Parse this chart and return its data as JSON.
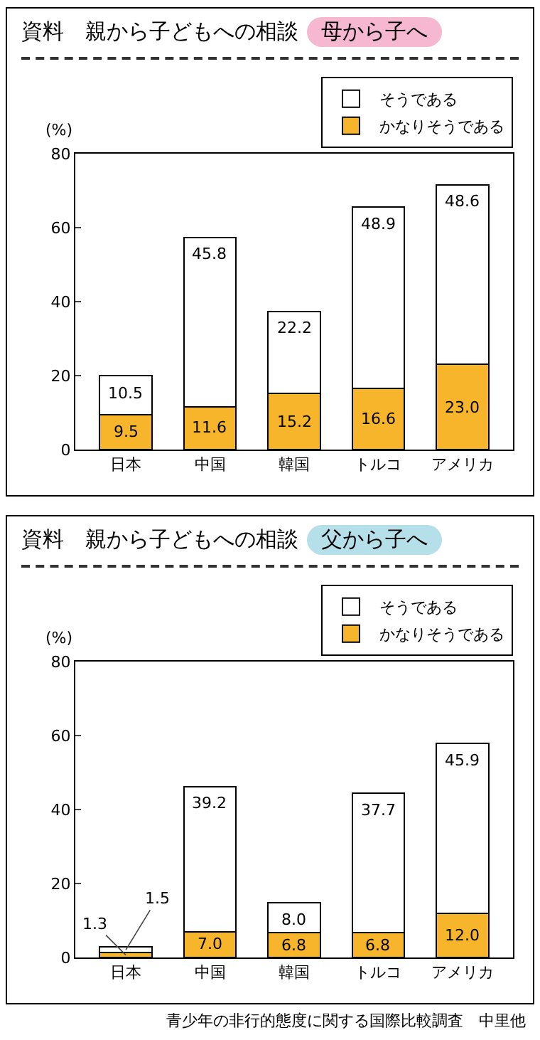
{
  "chart_data": [
    {
      "type": "bar",
      "title": "資料　親から子どもへの相談",
      "subtitle": "母から子へ",
      "ylabel": "(%)",
      "categories": [
        "日本",
        "中国",
        "韓国",
        "トルコ",
        "アメリカ"
      ],
      "stacked": true,
      "legend": "top right",
      "grid": false,
      "ylim": [
        0,
        80
      ],
      "yticks": [
        0,
        20,
        40,
        60,
        80
      ],
      "series": [
        {
          "name": "かなりそうである",
          "color": "#f7b52c",
          "values": [
            9.5,
            11.6,
            15.2,
            16.6,
            23.0
          ],
          "value_labels": [
            "9.5",
            "11.6",
            "15.2",
            "16.6",
            "23.0"
          ]
        },
        {
          "name": "そうである",
          "color": "#ffffff",
          "values": [
            10.5,
            45.8,
            22.2,
            48.9,
            48.6
          ],
          "value_labels": [
            "10.5",
            "45.8",
            "22.2",
            "48.9",
            "48.6"
          ]
        }
      ]
    },
    {
      "type": "bar",
      "title": "資料　親から子どもへの相談",
      "subtitle": "父から子へ",
      "ylabel": "(%)",
      "categories": [
        "日本",
        "中国",
        "韓国",
        "トルコ",
        "アメリカ"
      ],
      "stacked": true,
      "legend": "top right",
      "grid": false,
      "ylim": [
        0,
        80
      ],
      "yticks": [
        0,
        20,
        40,
        60,
        80
      ],
      "series": [
        {
          "name": "かなりそうである",
          "color": "#f7b52c",
          "values": [
            1.3,
            7.0,
            6.8,
            6.8,
            12.0
          ],
          "value_labels": [
            "1.3",
            "7.0",
            "6.8",
            "6.8",
            "12.0"
          ]
        },
        {
          "name": "そうである",
          "color": "#ffffff",
          "values": [
            1.5,
            39.2,
            8.0,
            37.7,
            45.9
          ],
          "value_labels": [
            "1.5",
            "39.2",
            "8.0",
            "37.7",
            "45.9"
          ]
        }
      ],
      "annotations": [
        "青少年の非行的態度に関する国際比較調査　中里他"
      ]
    }
  ]
}
